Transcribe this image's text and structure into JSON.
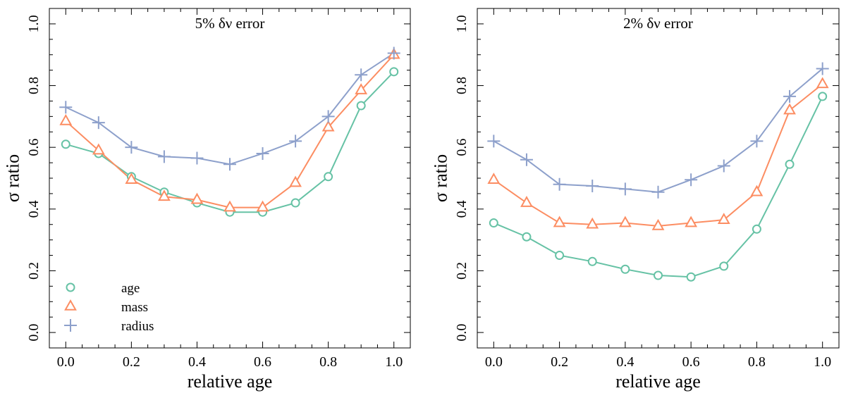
{
  "chart_data": [
    {
      "type": "line",
      "title": "5% δν error",
      "xlabel": "relative age",
      "ylabel": "σ ratio",
      "xlim": [
        -0.05,
        1.05
      ],
      "ylim": [
        -0.05,
        1.05
      ],
      "xticks": [
        0.0,
        0.2,
        0.4,
        0.6,
        0.8,
        1.0
      ],
      "xtick_labels": [
        "0.0",
        "0.2",
        "0.4",
        "0.6",
        "0.8",
        "1.0"
      ],
      "yticks": [
        0.0,
        0.2,
        0.4,
        0.6,
        0.8,
        1.0
      ],
      "ytick_labels": [
        "0.0",
        "0.2",
        "0.4",
        "0.6",
        "0.8",
        "1.0"
      ],
      "x": [
        0.0,
        0.1,
        0.2,
        0.3,
        0.4,
        0.5,
        0.6,
        0.7,
        0.8,
        0.9,
        1.0
      ],
      "legend_position": "bottom-left",
      "series": [
        {
          "name": "age",
          "marker": "circle",
          "color": "#66c2a5",
          "values": [
            0.61,
            0.58,
            0.505,
            0.455,
            0.42,
            0.39,
            0.39,
            0.42,
            0.505,
            0.735,
            0.845
          ]
        },
        {
          "name": "mass",
          "marker": "triangle",
          "color": "#fc8d62",
          "values": [
            0.685,
            0.59,
            0.495,
            0.44,
            0.43,
            0.405,
            0.405,
            0.485,
            0.665,
            0.785,
            0.9
          ]
        },
        {
          "name": "radius",
          "marker": "plus",
          "color": "#8da0cb",
          "values": [
            0.73,
            0.68,
            0.6,
            0.57,
            0.565,
            0.545,
            0.58,
            0.62,
            0.7,
            0.835,
            0.905
          ]
        }
      ]
    },
    {
      "type": "line",
      "title": "2% δν error",
      "xlabel": "relative age",
      "ylabel": "σ ratio",
      "xlim": [
        -0.05,
        1.05
      ],
      "ylim": [
        -0.05,
        1.05
      ],
      "xticks": [
        0.0,
        0.2,
        0.4,
        0.6,
        0.8,
        1.0
      ],
      "xtick_labels": [
        "0.0",
        "0.2",
        "0.4",
        "0.6",
        "0.8",
        "1.0"
      ],
      "yticks": [
        0.0,
        0.2,
        0.4,
        0.6,
        0.8,
        1.0
      ],
      "ytick_labels": [
        "0.0",
        "0.2",
        "0.4",
        "0.6",
        "0.8",
        "1.0"
      ],
      "x": [
        0.0,
        0.1,
        0.2,
        0.3,
        0.4,
        0.5,
        0.6,
        0.7,
        0.8,
        0.9,
        1.0
      ],
      "series": [
        {
          "name": "age",
          "marker": "circle",
          "color": "#66c2a5",
          "values": [
            0.355,
            0.31,
            0.25,
            0.23,
            0.205,
            0.185,
            0.18,
            0.215,
            0.335,
            0.545,
            0.765
          ]
        },
        {
          "name": "mass",
          "marker": "triangle",
          "color": "#fc8d62",
          "values": [
            0.495,
            0.42,
            0.355,
            0.35,
            0.355,
            0.345,
            0.355,
            0.365,
            0.455,
            0.72,
            0.805
          ]
        },
        {
          "name": "radius",
          "marker": "plus",
          "color": "#8da0cb",
          "values": [
            0.62,
            0.56,
            0.48,
            0.475,
            0.465,
            0.455,
            0.495,
            0.54,
            0.62,
            0.765,
            0.855
          ]
        }
      ]
    }
  ]
}
